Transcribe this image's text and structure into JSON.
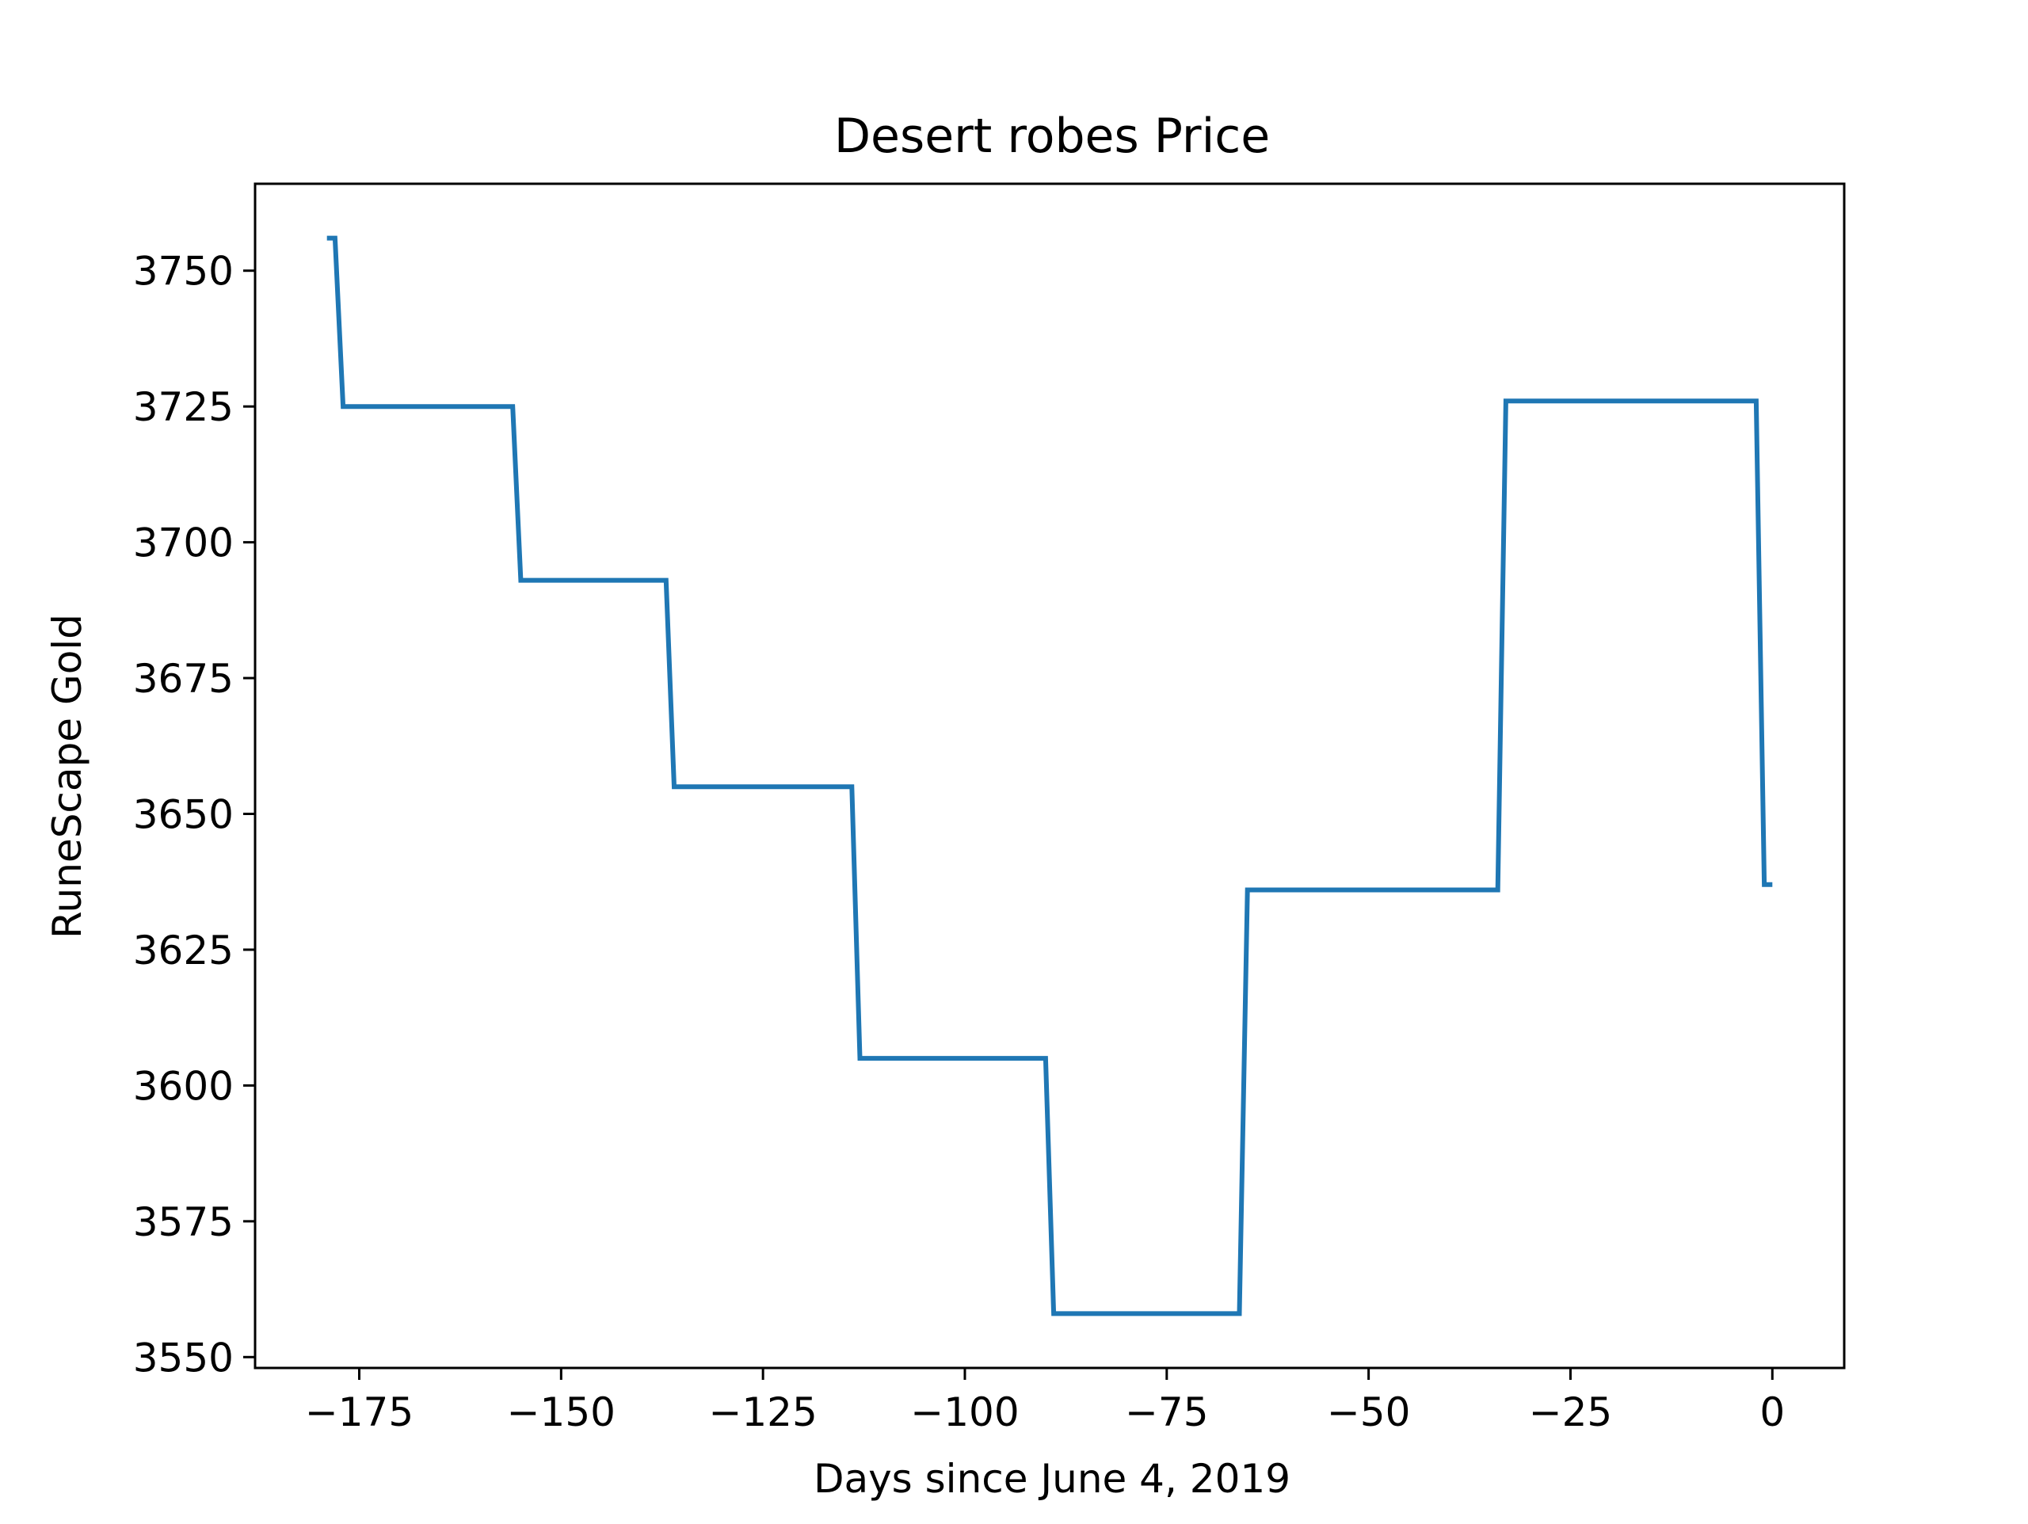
{
  "chart_data": {
    "type": "line",
    "title": "Desert robes Price",
    "xlabel": "Days since June 4, 2019",
    "ylabel": "RuneScape Gold",
    "xlim": [
      -187.9,
      8.9
    ],
    "ylim": [
      3548,
      3766
    ],
    "xticks": [
      -175,
      -150,
      -125,
      -100,
      -75,
      -50,
      -25,
      0
    ],
    "xtick_labels": [
      "−175",
      "−150",
      "−125",
      "−100",
      "−75",
      "−50",
      "−25",
      "0"
    ],
    "yticks": [
      3550,
      3575,
      3600,
      3625,
      3650,
      3675,
      3700,
      3725,
      3750
    ],
    "ytick_labels": [
      "3550",
      "3575",
      "3600",
      "3625",
      "3650",
      "3675",
      "3700",
      "3725",
      "3750"
    ],
    "grid": false,
    "legend": false,
    "series": [
      {
        "color": "#1f77b4",
        "x": [
          -179,
          -178,
          -177,
          -156,
          -155,
          -137,
          -136,
          -114,
          -113,
          -90,
          -89,
          -66,
          -65,
          -34,
          -33,
          -2,
          -1,
          0
        ],
        "y": [
          3756,
          3756,
          3725,
          3725,
          3693,
          3693,
          3655,
          3655,
          3605,
          3605,
          3558,
          3558,
          3636,
          3636,
          3726,
          3726,
          3637,
          3637
        ]
      }
    ]
  }
}
